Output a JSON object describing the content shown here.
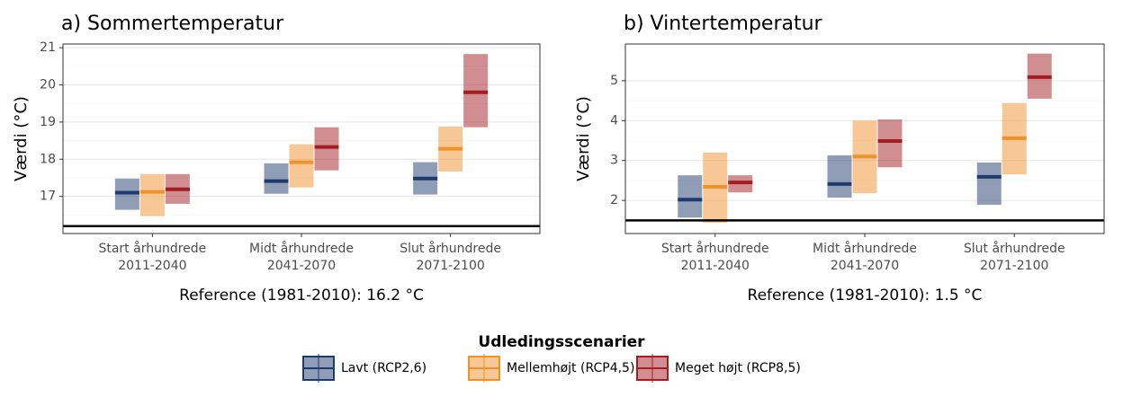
{
  "legend": {
    "title": "Udledingsscenarier",
    "items": [
      {
        "name": "Lavt (RCP2,6)",
        "color": "#1f3b6e"
      },
      {
        "name": "Mellemhøjt (RCP4,5)",
        "color": "#f0922b"
      },
      {
        "name": "Meget højt (RCP8,5)",
        "color": "#a31e22"
      }
    ]
  },
  "chart_data": [
    {
      "type": "range",
      "title": "a) Sommertemperatur",
      "ylabel": "Værdi (°C)",
      "xlabel": "Reference (1981-2010): 16.2 °C",
      "reference_line": 16.2,
      "categories": [
        [
          "Start århundrede",
          "2011-2040"
        ],
        [
          "Midt århundrede",
          "2041-2070"
        ],
        [
          "Slut århundrede",
          "2071-2100"
        ]
      ],
      "ylim": [
        16.0,
        21.1
      ],
      "yticks": [
        17,
        18,
        19,
        20,
        21
      ],
      "grid": true,
      "series": [
        {
          "low": [
            16.64,
            17.07,
            17.05
          ],
          "median": [
            17.1,
            17.41,
            17.48
          ],
          "high": [
            17.48,
            17.89,
            17.92
          ]
        },
        {
          "low": [
            16.47,
            17.24,
            17.67
          ],
          "median": [
            17.12,
            17.92,
            18.28
          ],
          "high": [
            17.6,
            18.4,
            18.88
          ]
        },
        {
          "low": [
            16.8,
            17.7,
            18.86
          ],
          "median": [
            17.19,
            18.33,
            19.8
          ],
          "high": [
            17.6,
            18.86,
            20.83
          ]
        }
      ]
    },
    {
      "type": "range",
      "title": "b) Vintertemperatur",
      "ylabel": "Værdi (°C)",
      "xlabel": "Reference (1981-2010): 1.5 °C",
      "reference_line": 1.5,
      "categories": [
        [
          "Start århundrede",
          "2011-2040"
        ],
        [
          "Midt århundrede",
          "2041-2070"
        ],
        [
          "Slut århundrede",
          "2071-2100"
        ]
      ],
      "ylim": [
        1.17,
        5.92
      ],
      "yticks": [
        2,
        3,
        4,
        5
      ],
      "grid": true,
      "series": [
        {
          "low": [
            1.57,
            2.07,
            1.89
          ],
          "median": [
            2.02,
            2.41,
            2.59
          ],
          "high": [
            2.63,
            3.13,
            2.95
          ]
        },
        {
          "low": [
            1.44,
            2.18,
            2.65
          ],
          "median": [
            2.34,
            3.1,
            3.56
          ],
          "high": [
            3.2,
            4.0,
            4.44
          ]
        },
        {
          "low": [
            2.2,
            2.83,
            4.55
          ],
          "median": [
            2.45,
            3.49,
            5.09
          ],
          "high": [
            2.63,
            4.03,
            5.68
          ]
        }
      ]
    }
  ]
}
